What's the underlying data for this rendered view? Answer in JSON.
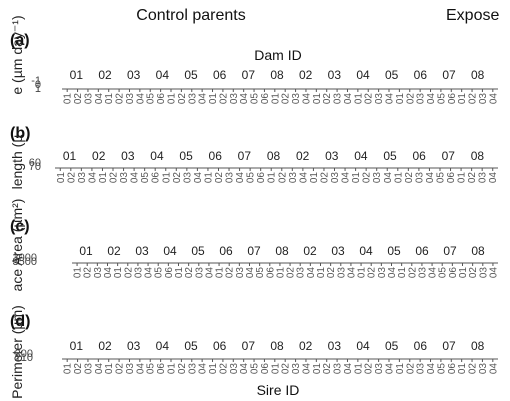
{
  "titles": {
    "control": "Control parents",
    "exposed": "Expose"
  },
  "x_title_top": "Dam ID",
  "x_title_bottom": "Sire ID",
  "chart_data": [
    {
      "type": "scatter",
      "panel": "(a)",
      "ylabel": "e (µm day⁻¹)",
      "ytick_labels": [
        "-1",
        "0",
        "1"
      ],
      "dam_groups": [
        "01",
        "02",
        "03",
        "04",
        "05",
        "06",
        "07",
        "08",
        "02",
        "03",
        "04",
        "05",
        "06",
        "07",
        "08"
      ],
      "sire_ticks": [
        "01",
        "02",
        "03",
        "04",
        "01",
        "02",
        "03",
        "04",
        "05",
        "06",
        "01",
        "02",
        "03",
        "04",
        "01",
        "02",
        "03",
        "04",
        "05",
        "06",
        "01",
        "02",
        "03",
        "04",
        "01",
        "02",
        "03",
        "04",
        "01",
        "02",
        "03",
        "04",
        "01",
        "02",
        "03",
        "04",
        "05",
        "06",
        "01",
        "02",
        "03",
        "04"
      ]
    },
    {
      "type": "scatter",
      "panel": "(b)",
      "ylabel": "length (µ",
      "ytick_labels": [
        "60",
        "70"
      ],
      "dam_groups": [
        "01",
        "02",
        "03",
        "04",
        "05",
        "06",
        "07",
        "08",
        "02",
        "03",
        "04",
        "05",
        "06",
        "07",
        "08"
      ],
      "sire_ticks": [
        "01",
        "02",
        "03",
        "04",
        "01",
        "02",
        "03",
        "04",
        "05",
        "06",
        "01",
        "02",
        "03",
        "04",
        "01",
        "02",
        "03",
        "04",
        "05",
        "06",
        "01",
        "02",
        "03",
        "04",
        "01",
        "02",
        "03",
        "04",
        "01",
        "02",
        "03",
        "04",
        "01",
        "02",
        "03",
        "04",
        "05",
        "06",
        "01",
        "02",
        "03",
        "04"
      ]
    },
    {
      "type": "scatter",
      "panel": "(c)",
      "ylabel": "ace Area (µm²)",
      "ytick_labels": [
        "3000",
        "3500"
      ],
      "dam_groups": [
        "01",
        "02",
        "03",
        "04",
        "05",
        "06",
        "07",
        "08",
        "02",
        "03",
        "04",
        "05",
        "06",
        "07",
        "08"
      ],
      "sire_ticks": [
        "01",
        "02",
        "03",
        "04",
        "01",
        "02",
        "03",
        "04",
        "05",
        "06",
        "01",
        "02",
        "03",
        "04",
        "01",
        "02",
        "03",
        "04",
        "05",
        "06",
        "01",
        "02",
        "03",
        "04",
        "01",
        "02",
        "03",
        "04",
        "01",
        "02",
        "03",
        "04",
        "01",
        "02",
        "03",
        "04",
        "05",
        "06",
        "01",
        "02",
        "03",
        "04"
      ]
    },
    {
      "type": "scatter",
      "panel": "(d)",
      "ylabel": "Perimeter (µm)",
      "ytick_labels": [
        "200",
        "210"
      ],
      "dam_groups": [
        "01",
        "02",
        "03",
        "04",
        "05",
        "06",
        "07",
        "08",
        "02",
        "03",
        "04",
        "05",
        "06",
        "07",
        "08"
      ],
      "sire_ticks": [
        "01",
        "02",
        "03",
        "04",
        "01",
        "02",
        "03",
        "04",
        "05",
        "06",
        "01",
        "02",
        "03",
        "04",
        "01",
        "02",
        "03",
        "04",
        "05",
        "06",
        "01",
        "02",
        "03",
        "04",
        "01",
        "02",
        "03",
        "04",
        "01",
        "02",
        "03",
        "04",
        "01",
        "02",
        "03",
        "04",
        "05",
        "06",
        "01",
        "02",
        "03",
        "04"
      ]
    }
  ]
}
